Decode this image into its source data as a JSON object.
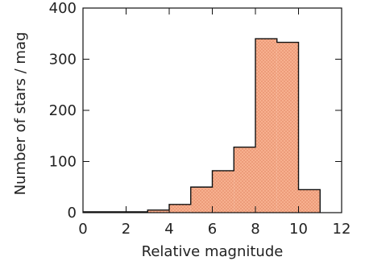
{
  "chart_data": {
    "type": "bar",
    "xlabel": "Relative magnitude",
    "ylabel": "Number of stars / mag",
    "xlim": [
      0,
      12
    ],
    "ylim": [
      0,
      400
    ],
    "x_ticks": [
      0,
      2,
      4,
      6,
      8,
      10,
      12
    ],
    "y_ticks": [
      0,
      100,
      200,
      300,
      400
    ],
    "bins": [
      {
        "x0": 3,
        "x1": 4,
        "value": 5
      },
      {
        "x0": 4,
        "x1": 5,
        "value": 16
      },
      {
        "x0": 5,
        "x1": 6,
        "value": 50
      },
      {
        "x0": 6,
        "x1": 7,
        "value": 82
      },
      {
        "x0": 7,
        "x1": 8,
        "value": 128
      },
      {
        "x0": 8,
        "x1": 9,
        "value": 340
      },
      {
        "x0": 9,
        "x1": 10,
        "value": 333
      },
      {
        "x0": 10,
        "x1": 11,
        "value": 45
      }
    ],
    "fill_color": "#f7b08f",
    "dot_color": "#d46a44",
    "edge_color": "#111111",
    "grid": false
  }
}
